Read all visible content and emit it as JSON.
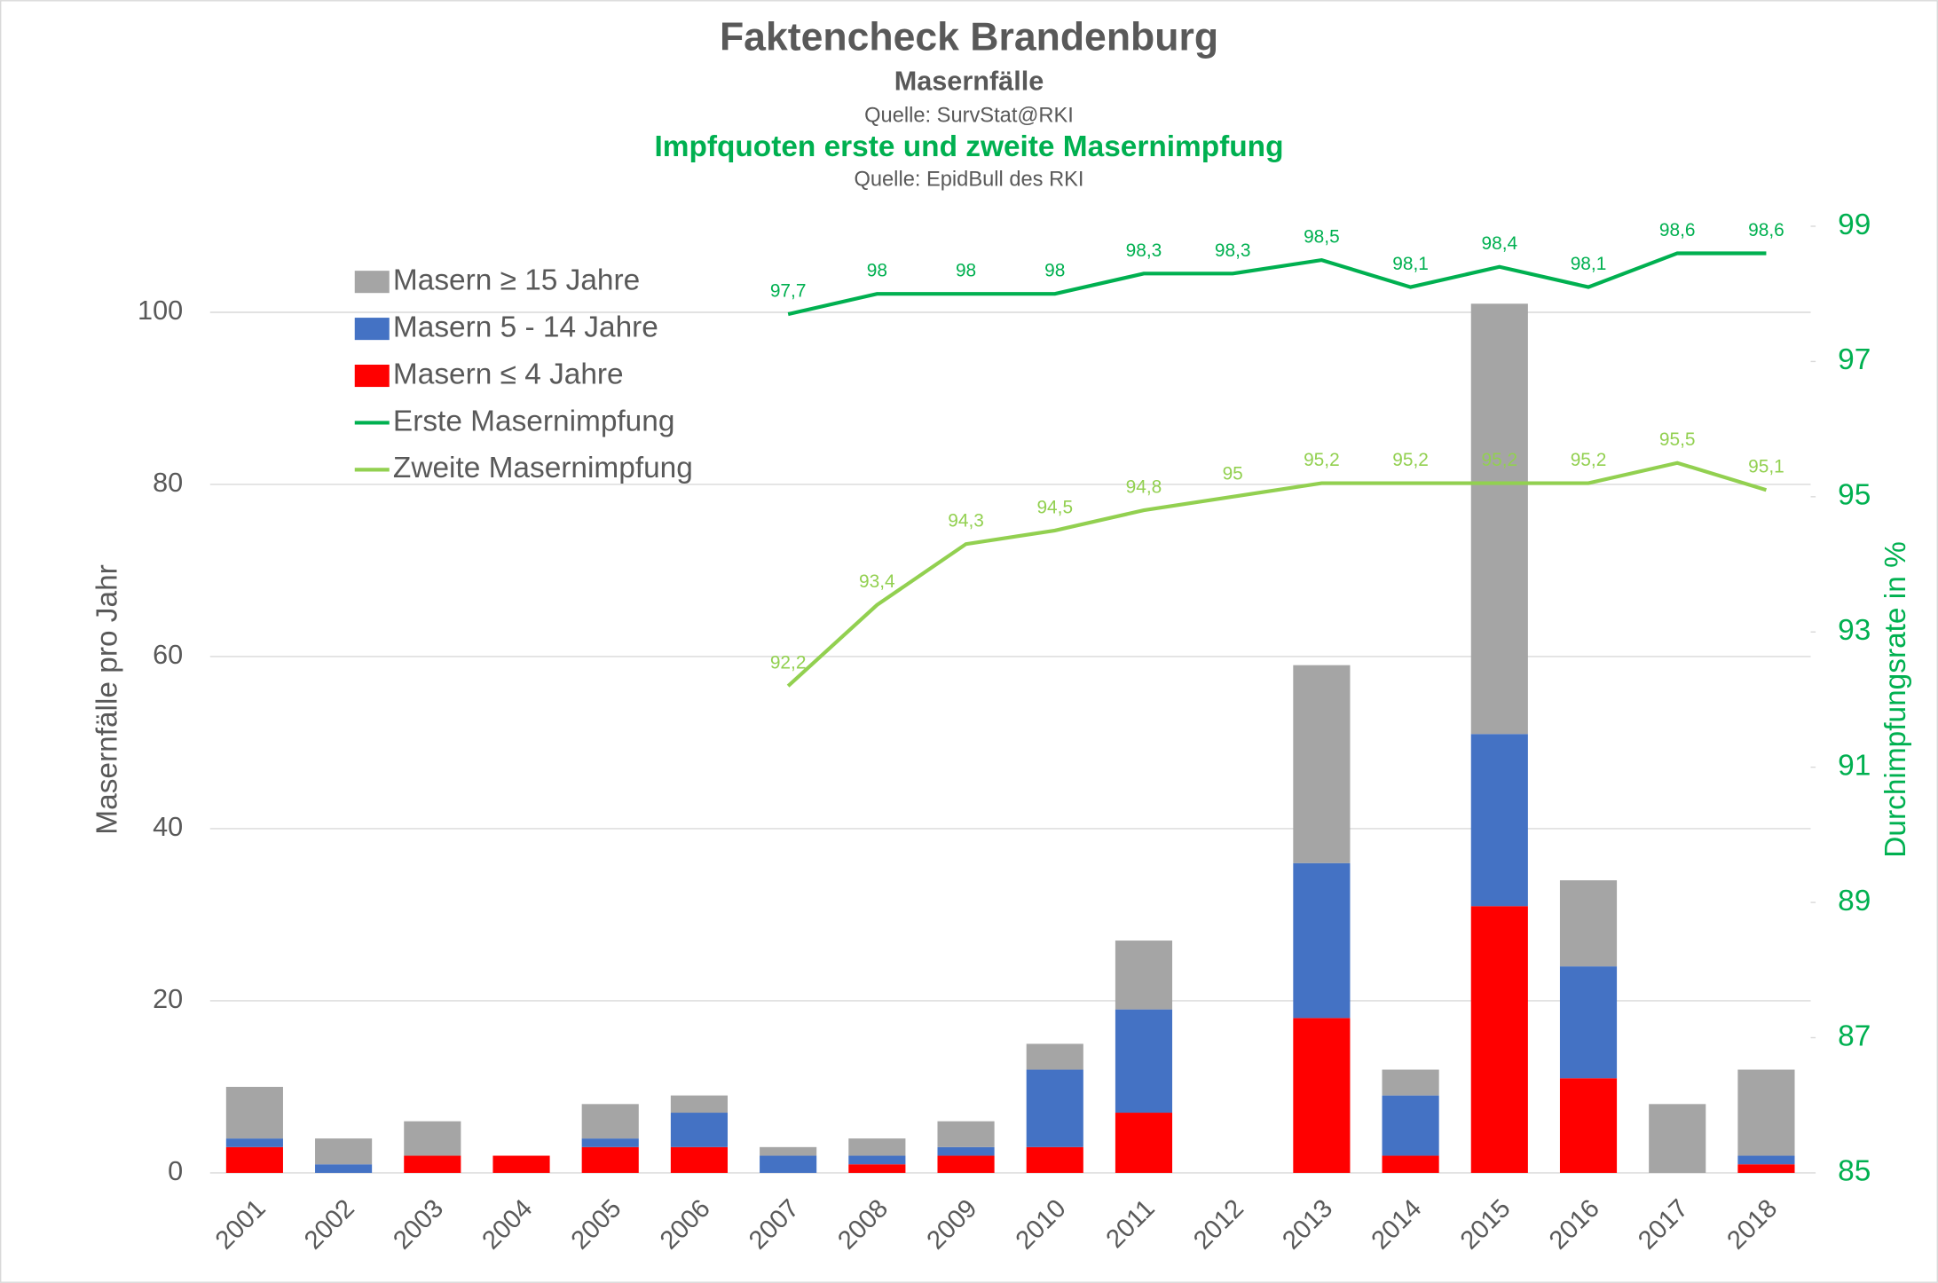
{
  "chart_data": {
    "type": "bar_line",
    "title": "Faktencheck Brandenburg",
    "subtitle": "Masernfälle",
    "source1": "Quelle: SurvStat@RKI",
    "subtitle2": "Impfquoten erste und zweite Masernimpfung",
    "source2": "Quelle: EpidBull des RKI",
    "ylabel": "Masernfälle pro Jahr",
    "y2label": "Durchimpfungsrate in %",
    "categories": [
      "2001",
      "2002",
      "2003",
      "2004",
      "2005",
      "2006",
      "2007",
      "2008",
      "2009",
      "2010",
      "2011",
      "2012",
      "2013",
      "2014",
      "2015",
      "2016",
      "2017",
      "2018"
    ],
    "ylim": [
      0,
      110
    ],
    "yticks": [
      0,
      20,
      40,
      60,
      80,
      100
    ],
    "y2lim": [
      85,
      99
    ],
    "y2ticks": [
      85,
      87,
      89,
      91,
      93,
      95,
      97,
      99
    ],
    "grid": true,
    "legend": "top-left",
    "series": [
      {
        "name": "Masern ≥ 15 Jahre",
        "type": "bar",
        "color": "#a5a5a5",
        "values": [
          6,
          3,
          4,
          0,
          4,
          2,
          1,
          2,
          3,
          3,
          8,
          0,
          23,
          3,
          50,
          10,
          8,
          10
        ]
      },
      {
        "name": "Masern 5 - 14 Jahre",
        "type": "bar",
        "color": "#4472c4",
        "values": [
          1,
          1,
          0,
          0,
          1,
          4,
          2,
          1,
          1,
          9,
          12,
          0,
          18,
          7,
          20,
          13,
          0,
          1
        ]
      },
      {
        "name": "Masern ≤ 4 Jahre",
        "type": "bar",
        "color": "#ff0000",
        "values": [
          3,
          0,
          2,
          2,
          3,
          3,
          0,
          1,
          2,
          3,
          7,
          0,
          18,
          2,
          31,
          11,
          0,
          1
        ]
      },
      {
        "name": "Erste Masernimpfung",
        "type": "line",
        "axis": "y2",
        "color": "#00b050",
        "values": [
          null,
          null,
          null,
          null,
          null,
          null,
          97.7,
          98,
          98,
          98,
          98.3,
          98.3,
          98.5,
          98.1,
          98.4,
          98.1,
          98.6,
          98.6
        ],
        "value_labels": [
          null,
          null,
          null,
          null,
          null,
          null,
          "97,7",
          "98",
          "98",
          "98",
          "98,3",
          "98,3",
          "98,5",
          "98,1",
          "98,4",
          "98,1",
          "98,6",
          "98,6"
        ]
      },
      {
        "name": "Zweite Masernimpfung",
        "type": "line",
        "axis": "y2",
        "color": "#92d050",
        "values": [
          null,
          null,
          null,
          null,
          null,
          null,
          92.2,
          93.4,
          94.3,
          94.5,
          94.8,
          95,
          95.2,
          95.2,
          95.2,
          95.2,
          95.5,
          95.1
        ],
        "value_labels": [
          null,
          null,
          null,
          null,
          null,
          null,
          "92,2",
          "93,4",
          "94,3",
          "94,5",
          "94,8",
          "95",
          "95,2",
          "95,2",
          "95,2",
          "95,2",
          "95,5",
          "95,1"
        ]
      }
    ]
  }
}
